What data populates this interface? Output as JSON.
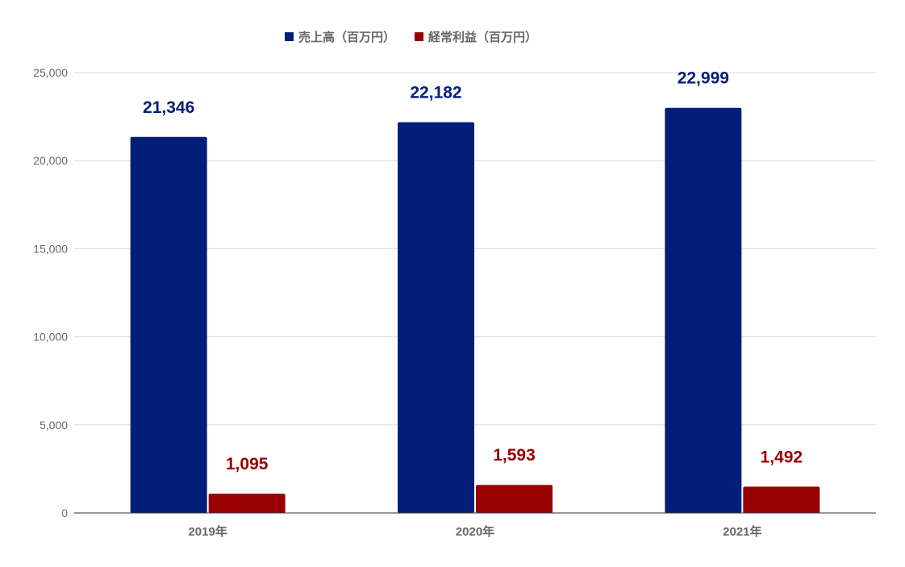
{
  "colors": {
    "series_sales": "#021E78",
    "series_profit": "#990000",
    "grid": "#d9d9d9",
    "axis_line": "#333333",
    "text": "#666666"
  },
  "chart_data": {
    "type": "bar",
    "title": "",
    "xlabel": "",
    "ylabel": "",
    "categories": [
      "2019年",
      "2020年",
      "2021年"
    ],
    "series": [
      {
        "name": "売上高（百万円）",
        "values": [
          21346,
          22182,
          22999
        ],
        "labels": [
          "21,346",
          "22,182",
          "22,999"
        ]
      },
      {
        "name": "経常利益（百万円）",
        "values": [
          1095,
          1593,
          1492
        ],
        "labels": [
          "1,095",
          "1,593",
          "1,492"
        ]
      }
    ],
    "ylim": [
      0,
      25000
    ],
    "yticks": [
      0,
      5000,
      10000,
      15000,
      20000,
      25000
    ],
    "ytick_labels": [
      "0",
      "5,000",
      "10,000",
      "15,000",
      "20,000",
      "25,000"
    ],
    "grid": true,
    "legend_position": "top-center",
    "data_labels": true
  }
}
